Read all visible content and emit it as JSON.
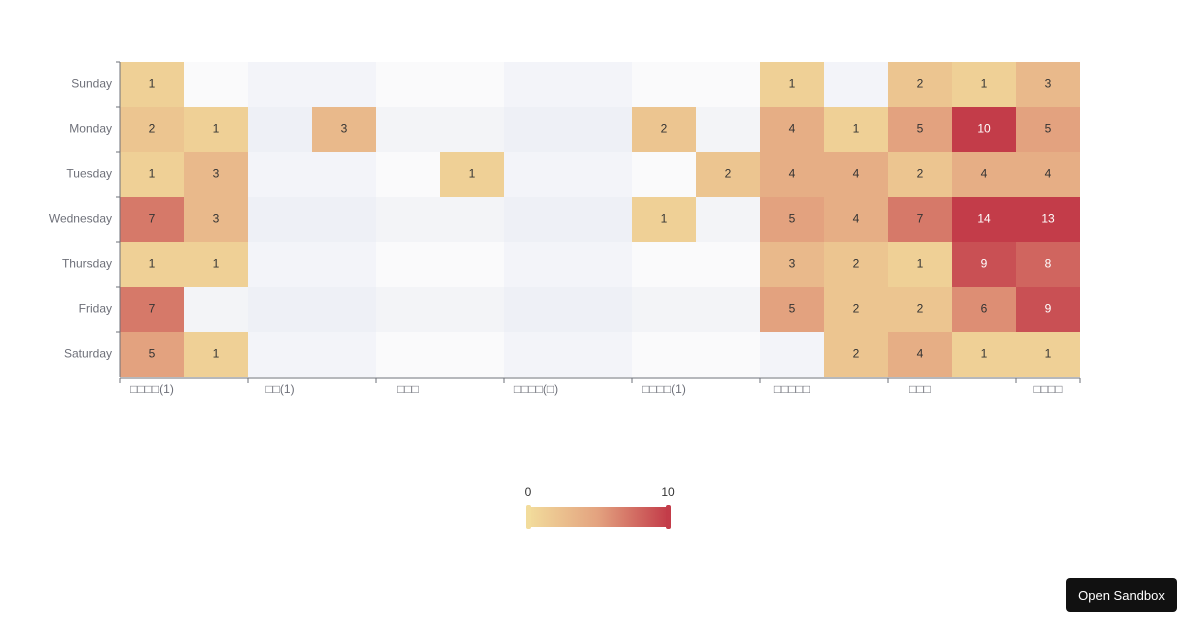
{
  "chart_data": {
    "type": "heatmap",
    "categories": [
      "□□□□(1)",
      null,
      "□□(1)",
      null,
      "□□□",
      null,
      "□□□□(□)",
      null,
      "□□□□(1)",
      null,
      "□□□□□",
      null,
      "□□□",
      null,
      "□□□□"
    ],
    "rows": [
      "Sunday",
      "Monday",
      "Tuesday",
      "Wednesday",
      "Thursday",
      "Friday",
      "Saturday"
    ],
    "values": [
      [
        1,
        null,
        null,
        null,
        null,
        null,
        null,
        null,
        null,
        null,
        1,
        null,
        2,
        1,
        3
      ],
      [
        2,
        1,
        null,
        3,
        null,
        null,
        null,
        null,
        2,
        null,
        4,
        1,
        5,
        10,
        5
      ],
      [
        1,
        3,
        null,
        null,
        null,
        1,
        null,
        null,
        null,
        2,
        4,
        4,
        2,
        4,
        4
      ],
      [
        7,
        3,
        null,
        null,
        null,
        null,
        null,
        null,
        1,
        null,
        5,
        4,
        7,
        14,
        13
      ],
      [
        1,
        1,
        null,
        null,
        null,
        null,
        null,
        null,
        null,
        null,
        3,
        2,
        1,
        9,
        8
      ],
      [
        7,
        null,
        null,
        null,
        null,
        null,
        null,
        null,
        null,
        null,
        5,
        2,
        2,
        6,
        9
      ],
      [
        5,
        1,
        null,
        null,
        null,
        null,
        null,
        null,
        null,
        null,
        null,
        2,
        4,
        1,
        1
      ]
    ],
    "visual_min": 0,
    "visual_max": 10,
    "colors": [
      "#f2dc9c",
      "#e3a27f",
      "#c33c49"
    ]
  },
  "button": "Open Sandbox"
}
